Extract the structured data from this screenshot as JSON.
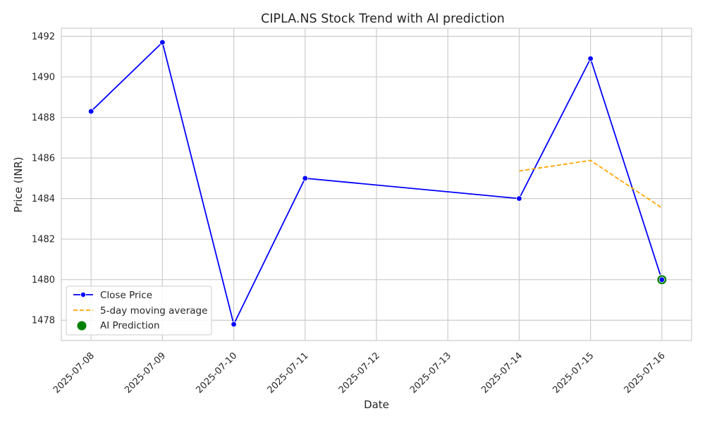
{
  "chart_data": {
    "type": "line",
    "title": "CIPLA.NS Stock Trend with AI prediction",
    "xlabel": "Date",
    "ylabel": "Price (INR)",
    "x_ticks": [
      "2025-07-08",
      "2025-07-09",
      "2025-07-10",
      "2025-07-11",
      "2025-07-12",
      "2025-07-13",
      "2025-07-14",
      "2025-07-15",
      "2025-07-16"
    ],
    "xlim": [
      "2025-07-07T14:00",
      "2025-07-16T10:00"
    ],
    "ylim": [
      1477.0,
      1492.4
    ],
    "y_ticks": [
      1478,
      1480,
      1482,
      1484,
      1486,
      1488,
      1490,
      1492
    ],
    "grid": true,
    "legend_position": "lower-left",
    "series": [
      {
        "name": "Close Price",
        "style": "line-with-markers",
        "color": "#0000ff",
        "points": [
          {
            "x": "2025-07-08",
            "y": 1488.3
          },
          {
            "x": "2025-07-09",
            "y": 1491.7
          },
          {
            "x": "2025-07-10",
            "y": 1477.8
          },
          {
            "x": "2025-07-11",
            "y": 1485.0
          },
          {
            "x": "2025-07-14",
            "y": 1484.0
          },
          {
            "x": "2025-07-15",
            "y": 1490.9
          },
          {
            "x": "2025-07-16",
            "y": 1480.0
          }
        ]
      },
      {
        "name": "5-day moving average",
        "style": "dashed",
        "color": "#ffa500",
        "points": [
          {
            "x": "2025-07-14",
            "y": 1485.36
          },
          {
            "x": "2025-07-15",
            "y": 1485.88
          },
          {
            "x": "2025-07-16",
            "y": 1483.54
          }
        ]
      },
      {
        "name": "AI Prediction",
        "style": "scatter",
        "color": "#008000",
        "points": [
          {
            "x": "2025-07-16",
            "y": 1480.0
          }
        ]
      }
    ]
  }
}
